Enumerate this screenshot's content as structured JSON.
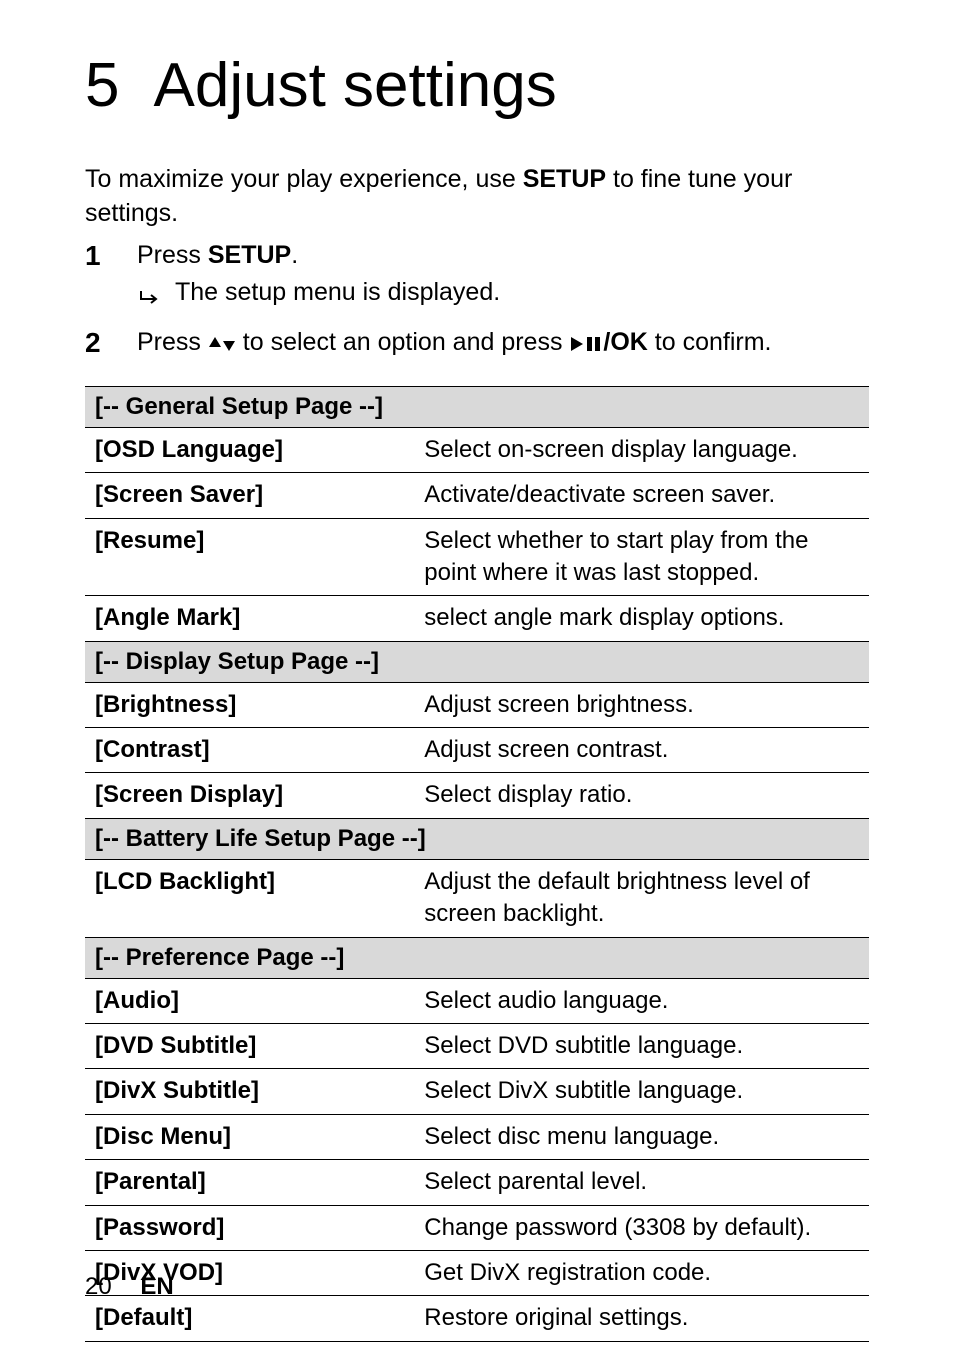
{
  "chapter": {
    "number": "5",
    "title": "Adjust settings"
  },
  "intro": {
    "pre": "To maximize your play experience, use ",
    "bold": "SETUP",
    "post": " to fine tune your settings."
  },
  "steps": [
    {
      "n": "1",
      "pre": "Press ",
      "bold": "SETUP",
      "post": ".",
      "sub": "The setup menu is displayed."
    },
    {
      "n": "2",
      "pre": "Press ",
      "mid": " to select an option and press ",
      "bold_after": "/OK",
      "post": " to confirm."
    }
  ],
  "sections": [
    {
      "header": "[-- General Setup Page --]",
      "items": [
        {
          "label": "[OSD Language]",
          "desc": "Select on-screen display language."
        },
        {
          "label": "[Screen Saver]",
          "desc": "Activate/deactivate screen saver."
        },
        {
          "label": "[Resume]",
          "desc": "Select whether to start play from the point where it was last stopped."
        },
        {
          "label": "[Angle Mark]",
          "desc": "select angle mark display options."
        }
      ]
    },
    {
      "header": "[-- Display Setup Page --]",
      "items": [
        {
          "label": "[Brightness]",
          "desc": "Adjust screen brightness."
        },
        {
          "label": "[Contrast]",
          "desc": "Adjust screen contrast."
        },
        {
          "label": "[Screen Display]",
          "desc": "Select display ratio."
        }
      ]
    },
    {
      "header": "[-- Battery Life Setup Page --]",
      "items": [
        {
          "label": "[LCD Backlight]",
          "desc": "Adjust the default brightness level of screen backlight."
        }
      ]
    },
    {
      "header": "[-- Preference Page --]",
      "items": [
        {
          "label": "[Audio]",
          "desc": "Select audio language."
        },
        {
          "label": "[DVD Subtitle]",
          "desc": "Select DVD subtitle language."
        },
        {
          "label": "[DivX Subtitle]",
          "desc": "Select DivX subtitle language."
        },
        {
          "label": "[Disc Menu]",
          "desc": "Select disc menu language."
        },
        {
          "label": "[Parental]",
          "desc": "Select parental level."
        },
        {
          "label": "[Password]",
          "desc": "Change password (3308 by default)."
        },
        {
          "label": "[DivX VOD]",
          "desc": "Get DivX registration code."
        },
        {
          "label": "[Default]",
          "desc": "Restore original settings."
        }
      ]
    }
  ],
  "footer": {
    "page": "20",
    "lang": "EN"
  },
  "colors": {
    "section_bg": "#d9d9d9",
    "text": "#000000",
    "bg": "#ffffff"
  }
}
